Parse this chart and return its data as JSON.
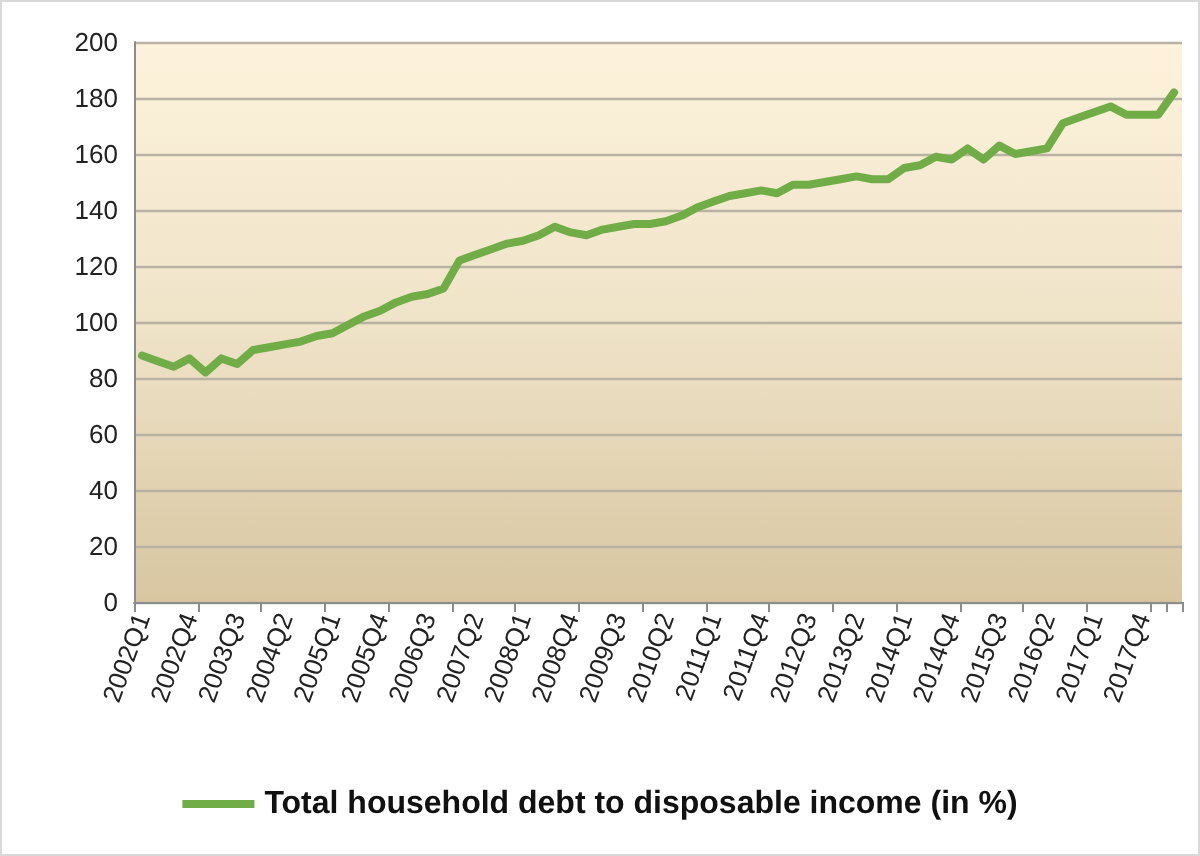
{
  "chart_data": {
    "type": "line",
    "categories": [
      "2002Q1",
      null,
      null,
      "2002Q4",
      null,
      null,
      "2003Q3",
      null,
      null,
      "2004Q2",
      null,
      null,
      "2005Q1",
      null,
      null,
      "2005Q4",
      null,
      null,
      "2006Q3",
      null,
      null,
      "2007Q2",
      null,
      null,
      "2008Q1",
      null,
      null,
      "2008Q4",
      null,
      null,
      "2009Q3",
      null,
      null,
      "2010Q2",
      null,
      null,
      "2011Q1",
      null,
      null,
      "2011Q4",
      null,
      null,
      "2012Q3",
      null,
      null,
      "2013Q2",
      null,
      null,
      "2014Q1",
      null,
      null,
      "2014Q4",
      null,
      null,
      "2015Q3",
      null,
      null,
      "2016Q2",
      null,
      null,
      "2017Q1",
      null,
      null,
      "2017Q4",
      null,
      null
    ],
    "series": [
      {
        "name": "Total household debt to disposable income (in %)",
        "color": "#70ad47",
        "values": [
          88,
          86,
          84,
          87,
          82,
          87,
          85,
          90,
          91,
          92,
          93,
          95,
          96,
          99,
          102,
          104,
          107,
          109,
          110,
          112,
          122,
          124,
          126,
          128,
          129,
          131,
          134,
          132,
          131,
          133,
          134,
          135,
          135,
          136,
          138,
          141,
          143,
          145,
          146,
          147,
          146,
          149,
          149,
          150,
          151,
          152,
          151,
          151,
          155,
          156,
          159,
          158,
          162,
          158,
          163,
          160,
          161,
          162,
          171,
          173,
          175,
          177,
          174,
          174,
          174,
          182
        ]
      }
    ],
    "ylim": [
      0,
      200
    ],
    "yticks": [
      0,
      20,
      40,
      60,
      80,
      100,
      120,
      140,
      160,
      180,
      200
    ],
    "grid": "y",
    "legend": "bottom",
    "marker": "none",
    "line_style": "solid"
  }
}
